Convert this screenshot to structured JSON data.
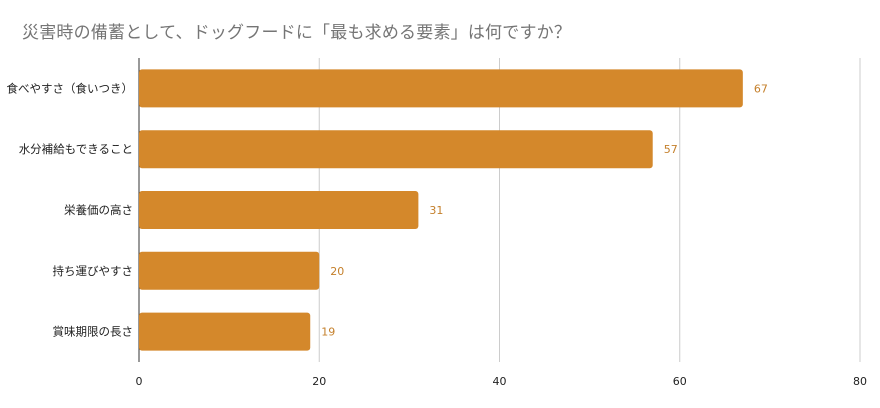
{
  "chart_data": {
    "type": "bar",
    "orientation": "horizontal",
    "title": "災害時の備蓄として、ドッグフードに「最も求める要素」は何ですか？",
    "categories": [
      "食べやすさ（食いつき）",
      "水分補給もできること",
      "栄養価の高さ",
      "持ち運びやすさ",
      "賞味期限の長さ"
    ],
    "values": [
      67,
      57,
      31,
      20,
      19
    ],
    "value_labels": [
      "67",
      "57",
      "31",
      "20",
      "19"
    ],
    "xlim": [
      0,
      80
    ],
    "xticks": [
      0,
      20,
      40,
      60,
      80
    ],
    "xtick_labels": [
      "0",
      "20",
      "40",
      "60",
      "80"
    ],
    "xlabel": "",
    "ylabel": "",
    "grid": true,
    "legend": "none",
    "bar_color": "#d4882b",
    "value_label_color": "#c47f2a",
    "title_color": "#757575"
  }
}
